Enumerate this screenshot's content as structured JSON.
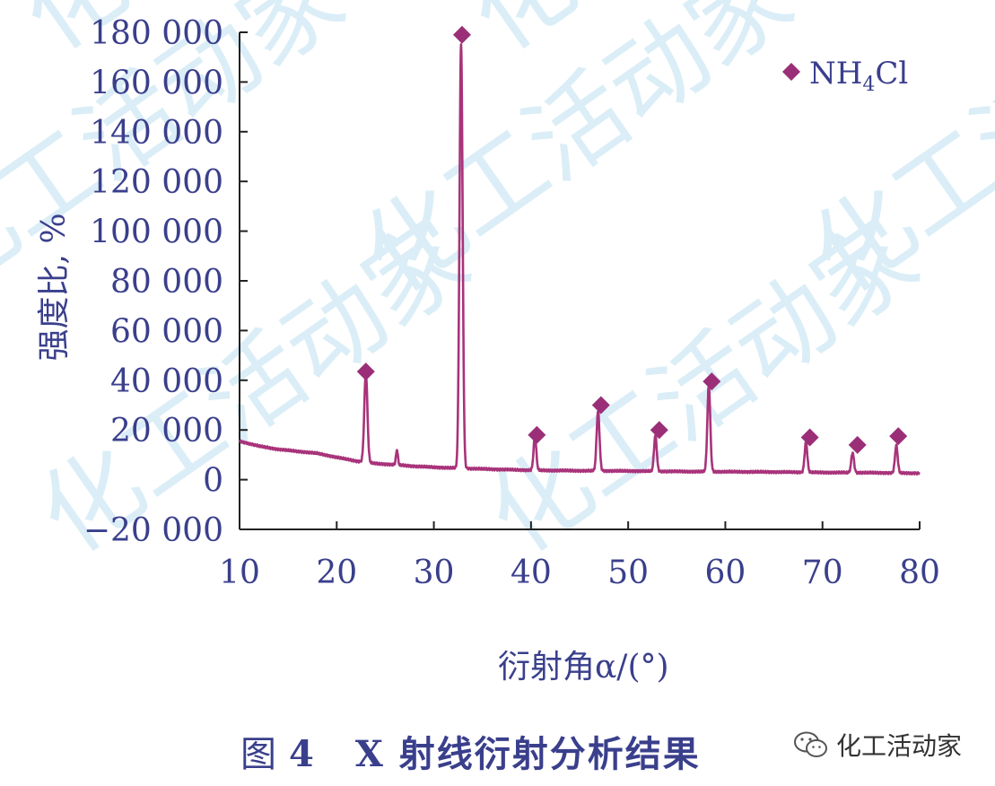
{
  "figure": {
    "caption_label": "图",
    "caption_number": "4",
    "caption_text": "X 射线衍射分析结果",
    "source_name": "化工活动家",
    "watermark_text": "化工活动家"
  },
  "colors": {
    "axis_text": "#3a3f8c",
    "series": "#a8337a",
    "marker": "#9a2f78",
    "watermark": "#dbeef7"
  },
  "chart_data": {
    "type": "line",
    "xlabel": "衍射角α/(°)",
    "ylabel": "强度比, %",
    "xlim": [
      10,
      80
    ],
    "ylim": [
      -20000,
      180000
    ],
    "x_ticks": [
      10,
      20,
      30,
      40,
      50,
      60,
      70,
      80
    ],
    "x_tick_labels": [
      "10",
      "20",
      "30",
      "40",
      "50",
      "60",
      "70",
      "80"
    ],
    "y_ticks": [
      -20000,
      0,
      20000,
      40000,
      60000,
      80000,
      100000,
      120000,
      140000,
      160000,
      180000
    ],
    "y_tick_labels": [
      "−20 000",
      "0",
      "20 000",
      "40 000",
      "60 000",
      "80 000",
      "100 000",
      "120 000",
      "140 000",
      "160 000",
      "180 000"
    ],
    "legend": {
      "label": "NH₄Cl",
      "position": "top-right",
      "marker": "diamond"
    },
    "baseline": [
      [
        10,
        15500
      ],
      [
        12,
        13500
      ],
      [
        14,
        12200
      ],
      [
        16,
        11400
      ],
      [
        18,
        10600
      ],
      [
        20,
        9000
      ],
      [
        22,
        7500
      ],
      [
        24,
        6500
      ],
      [
        26,
        6000
      ],
      [
        28,
        5400
      ],
      [
        30,
        5000
      ],
      [
        32,
        4700
      ],
      [
        36,
        4200
      ],
      [
        40,
        3800
      ],
      [
        45,
        3600
      ],
      [
        50,
        3500
      ],
      [
        55,
        3300
      ],
      [
        60,
        3200
      ],
      [
        65,
        3100
      ],
      [
        70,
        2900
      ],
      [
        75,
        2800
      ],
      [
        80,
        2600
      ]
    ],
    "peaks": [
      {
        "x": 23.0,
        "height": 36000,
        "width": 0.16
      },
      {
        "x": 26.2,
        "height": 6000,
        "width": 0.1
      },
      {
        "x": 32.8,
        "height": 171000,
        "width": 0.16
      },
      {
        "x": 40.4,
        "height": 13500,
        "width": 0.14
      },
      {
        "x": 46.9,
        "height": 24000,
        "width": 0.15
      },
      {
        "x": 52.8,
        "height": 14500,
        "width": 0.14
      },
      {
        "x": 58.3,
        "height": 34500,
        "width": 0.15
      },
      {
        "x": 68.3,
        "height": 12000,
        "width": 0.14
      },
      {
        "x": 73.1,
        "height": 8000,
        "width": 0.14
      },
      {
        "x": 77.6,
        "height": 11000,
        "width": 0.14
      }
    ],
    "markers": [
      {
        "x": 23.0,
        "y": 43500
      },
      {
        "x": 32.9,
        "y": 179000
      },
      {
        "x": 40.6,
        "y": 18000
      },
      {
        "x": 47.2,
        "y": 30000
      },
      {
        "x": 53.2,
        "y": 20000
      },
      {
        "x": 58.6,
        "y": 39500
      },
      {
        "x": 68.7,
        "y": 17000
      },
      {
        "x": 73.6,
        "y": 14000
      },
      {
        "x": 77.8,
        "y": 17500
      }
    ]
  }
}
